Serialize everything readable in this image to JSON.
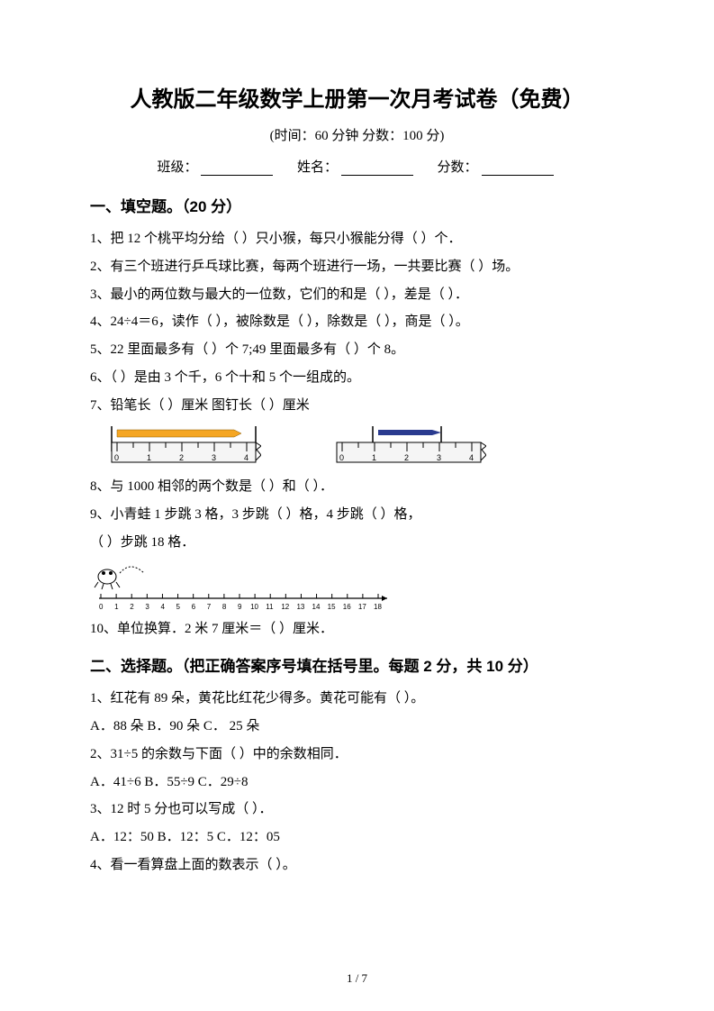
{
  "title": "人教版二年级数学上册第一次月考试卷（免费）",
  "subtitle": "(时间：60 分钟    分数：100 分)",
  "info": {
    "class_label": "班级：",
    "name_label": "姓名：",
    "score_label": "分数："
  },
  "sec1": {
    "title": "一、填空题。（20 分）",
    "q1": "1、把 12 个桃平均分给（        ）只小猴，每只小猴能分得（        ）个．",
    "q2": "2、有三个班进行乒乓球比赛，每两个班进行一场，一共要比赛（        ）场。",
    "q3": "3、最小的两位数与最大的一位数，它们的和是（        ），差是（        ）．",
    "q4": "4、24÷4＝6，读作（        ），被除数是（        ），除数是（        ），商是（        ）。",
    "q5": "5、22 里面最多有（        ）个 7;49 里面最多有（        ）个 8。",
    "q6": "6、（        ）是由 3 个千，6 个十和 5 个一组成的。",
    "q7": "7、铅笔长（        ）厘米               图钉长（        ）厘米",
    "q8": "8、与 1000 相邻的两个数是（        ）和（        ）．",
    "q9a": "9、小青蛙 1 步跳 3 格，3 步跳（        ）格，4 步跳（        ）格，",
    "q9b": "（        ）步跳 18 格．",
    "q10": "10、单位换算．2 米 7 厘米＝（        ）厘米．",
    "ruler": {
      "pencil_color": "#f5a623",
      "pin_color": "#2a3b8f",
      "ruler_bg": "#f5f5f5",
      "stroke": "#000000",
      "ticks": [
        "0",
        "1",
        "2",
        "3",
        "4"
      ]
    },
    "frog": {
      "ticks": [
        "0",
        "1",
        "2",
        "3",
        "4",
        "5",
        "6",
        "7",
        "8",
        "9",
        "10",
        "11",
        "12",
        "13",
        "14",
        "15",
        "16",
        "17",
        "18"
      ],
      "color": "#000000"
    }
  },
  "sec2": {
    "title": "二、选择题。（把正确答案序号填在括号里。每题 2 分，共 10 分）",
    "q1": "1、红花有 89 朵，黄花比红花少得多。黄花可能有（      ）。",
    "q1a": "A．88 朵                   B．90 朵                   C．  25 朵",
    "q2": "2、31÷5 的余数与下面（      ）中的余数相同．",
    "q2a": "A．41÷6                   B．55÷9                   C．29÷8",
    "q3": "3、12 时 5 分也可以写成（        ）．",
    "q3a": "A．12：50                  B．12：5                   C．12：05",
    "q4": "4、看一看算盘上面的数表示（        ）。"
  },
  "page_num": "1 / 7"
}
